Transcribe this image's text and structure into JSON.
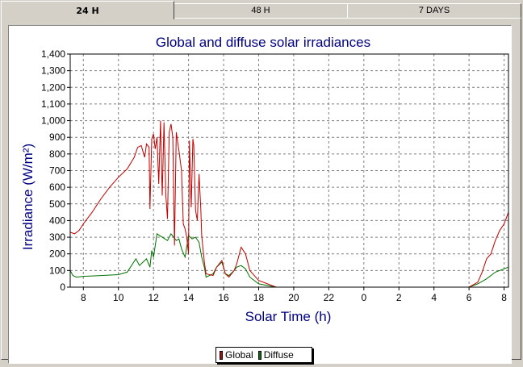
{
  "tabs": [
    {
      "label": "24 H",
      "active": true
    },
    {
      "label": "48 H",
      "active": false
    },
    {
      "label": "7 DAYS",
      "active": false
    }
  ],
  "chart_data": {
    "type": "line",
    "title": "Global and diffuse solar irradiances",
    "xlabel": "Solar Time (h)",
    "ylabel": "Irradiance (W/m²)",
    "x_ticks": [
      "8",
      "10",
      "12",
      "14",
      "16",
      "18",
      "20",
      "22",
      "0",
      "2",
      "4",
      "6",
      "8"
    ],
    "y_ticks": [
      "0",
      "100",
      "200",
      "300",
      "400",
      "500",
      "600",
      "700",
      "800",
      "900",
      "1,000",
      "1,100",
      "1,200",
      "1,300",
      "1,400"
    ],
    "ylim": [
      0,
      1400
    ],
    "xlim_hours_elapsed": [
      -0.75,
      24.25
    ],
    "grid": true,
    "legend_position": "bottom-center",
    "colors": {
      "Global": "#c00000",
      "Diffuse": "#007000",
      "title": "#000080"
    },
    "series": [
      {
        "name": "Global",
        "x": [
          -0.75,
          -0.5,
          -0.25,
          0,
          0.5,
          1,
          1.5,
          2,
          2.5,
          2.9,
          3.1,
          3.3,
          3.5,
          3.6,
          3.75,
          3.8,
          3.9,
          4.0,
          4.1,
          4.2,
          4.3,
          4.4,
          4.5,
          4.6,
          4.7,
          4.8,
          4.9,
          5.0,
          5.1,
          5.2,
          5.3,
          5.45,
          5.6,
          5.7,
          5.8,
          5.9,
          6.0,
          6.05,
          6.15,
          6.25,
          6.3,
          6.4,
          6.5,
          6.6,
          6.7,
          6.75,
          6.9,
          7.0,
          7.4,
          7.6,
          7.9,
          8.1,
          8.3,
          8.6,
          8.75,
          9.0,
          9.25,
          9.5,
          10,
          11,
          12,
          13,
          14,
          15,
          16,
          17,
          18,
          20,
          21,
          22,
          22.5,
          22.75,
          23.0,
          23.25,
          23.5,
          23.75,
          24.0,
          24.25
        ],
        "y": [
          330,
          320,
          340,
          380,
          450,
          530,
          600,
          660,
          710,
          780,
          840,
          850,
          780,
          860,
          840,
          470,
          890,
          920,
          830,
          900,
          620,
          1000,
          550,
          990,
          560,
          410,
          930,
          980,
          900,
          250,
          930,
          820,
          700,
          380,
          350,
          300,
          200,
          880,
          480,
          890,
          850,
          460,
          400,
          680,
          470,
          310,
          150,
          80,
          70,
          120,
          160,
          80,
          60,
          100,
          140,
          240,
          200,
          100,
          40,
          0,
          0,
          0,
          0,
          0,
          0,
          0,
          0,
          0,
          0,
          0,
          30,
          90,
          170,
          200,
          280,
          340,
          380,
          450
        ]
      },
      {
        "name": "Diffuse",
        "x": [
          -0.75,
          -0.6,
          -0.4,
          0,
          1,
          2,
          2.5,
          3.0,
          3.2,
          3.4,
          3.6,
          3.8,
          3.9,
          4.0,
          4.2,
          4.5,
          4.8,
          5.0,
          5.3,
          5.45,
          5.6,
          5.8,
          6.0,
          6.2,
          6.4,
          6.6,
          6.75,
          6.9,
          7.0,
          7.4,
          7.6,
          7.9,
          8.1,
          8.3,
          8.6,
          8.75,
          9.0,
          9.25,
          9.5,
          10,
          11,
          12,
          13,
          14,
          15,
          16,
          17,
          18,
          20,
          21,
          22,
          22.5,
          23.0,
          23.5,
          24.0,
          24.25
        ],
        "y": [
          100,
          70,
          60,
          65,
          70,
          75,
          90,
          170,
          130,
          150,
          170,
          120,
          220,
          180,
          320,
          300,
          280,
          320,
          280,
          290,
          230,
          180,
          310,
          290,
          300,
          270,
          180,
          120,
          60,
          80,
          120,
          150,
          80,
          70,
          100,
          120,
          130,
          110,
          60,
          20,
          0,
          0,
          0,
          0,
          0,
          0,
          0,
          0,
          0,
          0,
          0,
          20,
          50,
          90,
          110,
          120
        ]
      }
    ]
  }
}
